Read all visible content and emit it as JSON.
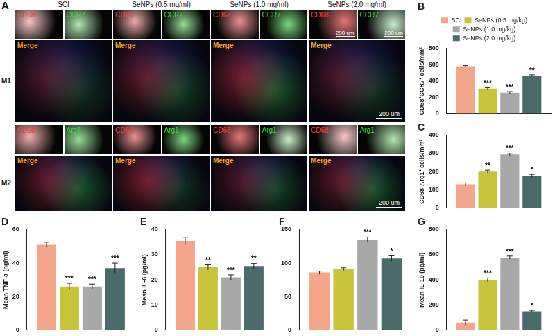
{
  "panel_a": {
    "label": "A",
    "columns": [
      "SCI",
      "SeNPs (0.5 mg/ml)",
      "SeNPs (1.0 mg/ml)",
      "SeNPs (2.0 mg/ml)"
    ],
    "rows": [
      {
        "label": "M1",
        "channels": [
          "CD68",
          "CCR7"
        ]
      },
      {
        "label": "M2",
        "channels": [
          "CD68",
          "Arg1"
        ]
      }
    ],
    "merge": "Merge",
    "scale_bar": "200 um"
  },
  "chart_data": [
    {
      "type": "bar",
      "title": "B",
      "ylabel": "CD68⁺CCR7⁺ cells/mm²",
      "categories": [
        null
      ],
      "legend": "top",
      "series": [
        {
          "name": "SCI",
          "color": "#f4a58a",
          "values": [
            580
          ],
          "errors": [
            10
          ],
          "annotations": [
            null
          ]
        },
        {
          "name": "SeNPs (0.5 mg/kg)",
          "color": "#c8c43c",
          "values": [
            305
          ],
          "errors": [
            12
          ],
          "annotations": [
            "***"
          ]
        },
        {
          "name": "SeNPs (1.0 mg/kg)",
          "color": "#a8a8a8",
          "values": [
            255
          ],
          "errors": [
            14
          ],
          "annotations": [
            "***"
          ]
        },
        {
          "name": "SeNPs (2.0 mg/kg)",
          "color": "#4b6b6b",
          "values": [
            465
          ],
          "errors": [
            10
          ],
          "annotations": [
            "**"
          ]
        }
      ],
      "ylim": [
        0,
        800
      ],
      "yticks": [
        0,
        200,
        400,
        600,
        800
      ],
      "grid": false,
      "tick_labels": "y"
    },
    {
      "type": "bar",
      "title": "C",
      "ylabel": "CD68⁺Arg1⁺ cells/mm²",
      "categories": [
        null
      ],
      "series": [
        {
          "color": "#f4a58a",
          "values": [
            130
          ],
          "errors": [
            8
          ],
          "annotations": [
            null
          ]
        },
        {
          "color": "#c8c43c",
          "values": [
            200
          ],
          "errors": [
            8
          ],
          "annotations": [
            "**"
          ]
        },
        {
          "color": "#a8a8a8",
          "values": [
            295
          ],
          "errors": [
            6
          ],
          "annotations": [
            "***"
          ]
        },
        {
          "color": "#4b6b6b",
          "values": [
            175
          ],
          "errors": [
            10
          ],
          "annotations": [
            "*"
          ]
        }
      ],
      "ylim": [
        0,
        400
      ],
      "yticks": [
        0,
        100,
        200,
        300,
        400
      ],
      "grid": false,
      "tick_labels": "y"
    },
    {
      "type": "bar",
      "title": "D",
      "ylabel": "Mean TNF-a (ng/ml)",
      "categories": [
        null
      ],
      "series": [
        {
          "color": "#f4a58a",
          "values": [
            51
          ],
          "errors": [
            1.5
          ],
          "annotations": [
            null
          ]
        },
        {
          "color": "#c8c43c",
          "values": [
            26
          ],
          "errors": [
            2
          ],
          "annotations": [
            "***"
          ]
        },
        {
          "color": "#a8a8a8",
          "values": [
            26
          ],
          "errors": [
            1.5
          ],
          "annotations": [
            "***"
          ]
        },
        {
          "color": "#4b6b6b",
          "values": [
            37
          ],
          "errors": [
            3
          ],
          "annotations": [
            "***"
          ]
        }
      ],
      "ylim": [
        0,
        60
      ],
      "yticks": [
        0,
        20,
        40,
        60
      ],
      "grid": false,
      "tick_labels": "y"
    },
    {
      "type": "bar",
      "title": "E",
      "ylabel": "Mean IL-6 (pg/ml)",
      "categories": [
        null
      ],
      "series": [
        {
          "color": "#f4a58a",
          "values": [
            35.5
          ],
          "errors": [
            1.5
          ],
          "annotations": [
            null
          ]
        },
        {
          "color": "#c8c43c",
          "values": [
            25
          ],
          "errors": [
            1
          ],
          "annotations": [
            "**"
          ]
        },
        {
          "color": "#a8a8a8",
          "values": [
            21
          ],
          "errors": [
            1
          ],
          "annotations": [
            "***"
          ]
        },
        {
          "color": "#4b6b6b",
          "values": [
            25.5
          ],
          "errors": [
            1
          ],
          "annotations": [
            "**"
          ]
        }
      ],
      "ylim": [
        0,
        40
      ],
      "yticks": [
        0,
        10,
        20,
        30,
        40
      ],
      "grid": false,
      "tick_labels": "y"
    },
    {
      "type": "bar",
      "title": "F",
      "categories": [
        null
      ],
      "series": [
        {
          "color": "#f4a58a",
          "values": [
            86
          ],
          "errors": [
            2
          ],
          "annotations": [
            null
          ]
        },
        {
          "color": "#c8c43c",
          "values": [
            91
          ],
          "errors": [
            2
          ],
          "annotations": [
            null
          ]
        },
        {
          "color": "#a8a8a8",
          "values": [
            135
          ],
          "errors": [
            4
          ],
          "annotations": [
            "***"
          ]
        },
        {
          "color": "#4b6b6b",
          "values": [
            107
          ],
          "errors": [
            4
          ],
          "annotations": [
            "*"
          ]
        }
      ],
      "ylim": [
        0,
        150
      ],
      "yticks": [
        0,
        50,
        100,
        150
      ],
      "grid": false,
      "tick_labels": "y"
    },
    {
      "type": "bar",
      "title": "G",
      "ylabel": "Mean IL-10 (pg/ml)",
      "categories": [
        null
      ],
      "series": [
        {
          "color": "#f4a58a",
          "values": [
            60
          ],
          "errors": [
            20
          ],
          "annotations": [
            null
          ]
        },
        {
          "color": "#c8c43c",
          "values": [
            400
          ],
          "errors": [
            15
          ],
          "annotations": [
            "***"
          ]
        },
        {
          "color": "#a8a8a8",
          "values": [
            578
          ],
          "errors": [
            12
          ],
          "annotations": [
            "***"
          ]
        },
        {
          "color": "#4b6b6b",
          "values": [
            150
          ],
          "errors": [
            8
          ],
          "annotations": [
            "*"
          ]
        }
      ],
      "ylim": [
        0,
        800
      ],
      "yticks": [
        0,
        200,
        400,
        600,
        800
      ],
      "grid": false,
      "tick_labels": "y"
    }
  ]
}
